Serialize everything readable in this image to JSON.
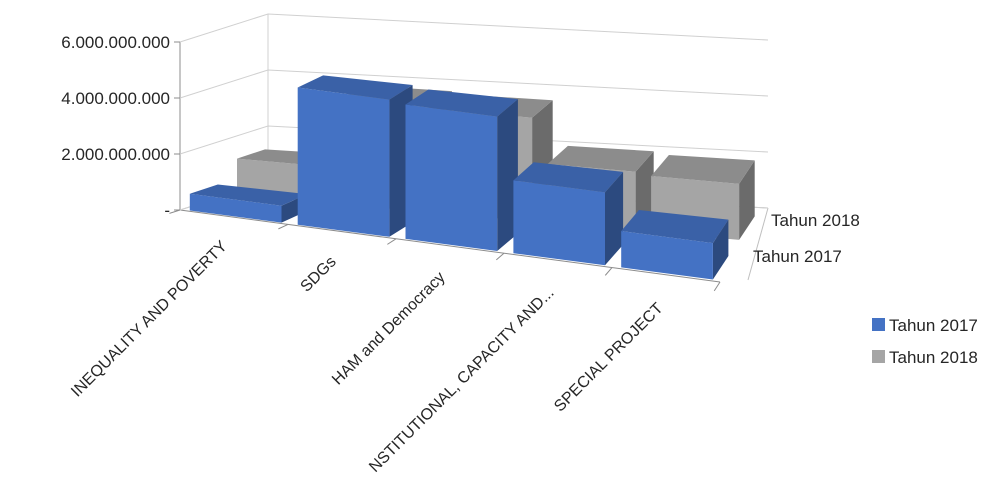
{
  "chart_data": {
    "type": "bar",
    "categories": [
      "INEQUALITY AND POVERTY",
      "SDGs",
      "HAM and Democracy",
      "NSTITUTIONAL, CAPACITY AND...",
      "SPECIAL PROJECT"
    ],
    "series": [
      {
        "name": "Tahun 2017",
        "color": "#4472C4",
        "values": [
          600000000,
          4900000000,
          4800000000,
          2600000000,
          1300000000
        ]
      },
      {
        "name": "Tahun 2018",
        "color": "#A5A5A5",
        "values": [
          1300000000,
          3800000000,
          3700000000,
          2100000000,
          2000000000
        ]
      }
    ],
    "y_ticks": [
      "-",
      "2.000.000.000",
      "4.000.000.000",
      "6.000.000.000"
    ],
    "depth_labels": [
      "Tahun 2018",
      "Tahun 2017"
    ],
    "ylim": [
      0,
      6000000000
    ],
    "grid": true,
    "legend_position": "right"
  }
}
